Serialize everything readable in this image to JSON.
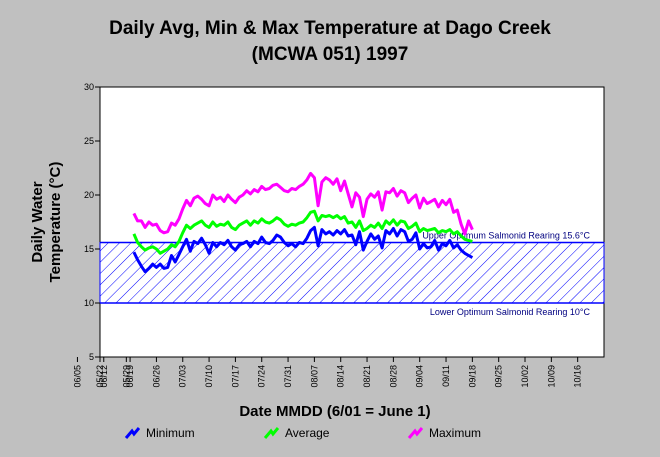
{
  "chart_data": {
    "type": "line",
    "title": "Daily Avg, Min & Max Temperature at Dago Creek",
    "subtitle": "(MCWA 051) 1997",
    "xlabel": "Date MMDD (6/01 = June 1)",
    "ylabel_line1": "Daily Water",
    "ylabel_line2": "Temperature (°C)",
    "ylim": [
      5,
      30
    ],
    "yticks": [
      5,
      10,
      15,
      20,
      25,
      30
    ],
    "x_ticks": [
      "05/22",
      "05/29",
      "06/05",
      "06/12",
      "06/19",
      "06/26",
      "07/03",
      "07/10",
      "07/17",
      "07/24",
      "07/31",
      "08/07",
      "08/14",
      "08/21",
      "08/28",
      "09/04",
      "09/11",
      "09/18",
      "09/25",
      "10/02",
      "10/09",
      "10/16"
    ],
    "x_start": "05/22",
    "x_end": "10/23",
    "grid": false,
    "legend_position": "bottom",
    "band": {
      "lower": 10,
      "upper": 15.6,
      "upper_label": "Upper Optimum Salmonid Rearing 15.6°C",
      "lower_label": "Lower Optimum Salmonid Rearing 10°C",
      "color": "#0000ff"
    },
    "x": [
      "06/20",
      "06/21",
      "06/22",
      "06/23",
      "06/24",
      "06/25",
      "06/26",
      "06/27",
      "06/28",
      "06/29",
      "06/30",
      "07/01",
      "07/02",
      "07/03",
      "07/04",
      "07/05",
      "07/06",
      "07/07",
      "07/08",
      "07/09",
      "07/10",
      "07/11",
      "07/12",
      "07/13",
      "07/14",
      "07/15",
      "07/16",
      "07/17",
      "07/18",
      "07/19",
      "07/20",
      "07/21",
      "07/22",
      "07/23",
      "07/24",
      "07/25",
      "07/26",
      "07/27",
      "07/28",
      "07/29",
      "07/30",
      "07/31",
      "08/01",
      "08/02",
      "08/03",
      "08/04",
      "08/05",
      "08/06",
      "08/07",
      "08/08",
      "08/09",
      "08/10",
      "08/11",
      "08/12",
      "08/13",
      "08/14",
      "08/15",
      "08/16",
      "08/17",
      "08/18",
      "08/19",
      "08/20",
      "08/21",
      "08/22",
      "08/23",
      "08/24",
      "08/25",
      "08/26",
      "08/27",
      "08/28",
      "08/29",
      "08/30",
      "08/31",
      "09/01",
      "09/02",
      "09/03",
      "09/04",
      "09/05",
      "09/06",
      "09/07",
      "09/08",
      "09/09",
      "09/10",
      "09/11",
      "09/12",
      "09/13",
      "09/14",
      "09/15",
      "09/16",
      "09/17",
      "09/18"
    ],
    "series": [
      {
        "name": "Minimum",
        "color": "#0000ff",
        "values": [
          14.7,
          14.0,
          13.4,
          12.9,
          13.2,
          13.6,
          13.3,
          13.6,
          13.2,
          13.3,
          14.4,
          13.8,
          14.5,
          15.2,
          15.9,
          14.8,
          15.7,
          15.5,
          16.0,
          15.4,
          14.6,
          15.6,
          15.2,
          15.6,
          15.4,
          15.8,
          15.2,
          14.9,
          15.4,
          15.5,
          15.7,
          15.2,
          15.7,
          15.5,
          16.1,
          15.6,
          15.5,
          15.8,
          16.3,
          16.1,
          15.6,
          15.3,
          15.5,
          15.2,
          15.6,
          15.5,
          16.0,
          16.7,
          17.0,
          15.3,
          16.8,
          16.4,
          16.6,
          16.3,
          16.7,
          16.4,
          16.8,
          16.2,
          16.3,
          15.4,
          16.6,
          14.9,
          15.7,
          16.4,
          15.9,
          16.2,
          15.1,
          16.7,
          16.4,
          16.9,
          16.2,
          16.8,
          16.6,
          15.7,
          15.9,
          16.5,
          15.0,
          15.5,
          15.1,
          15.2,
          15.8,
          14.9,
          15.5,
          15.3,
          15.8,
          15.1,
          15.4,
          14.9,
          14.6,
          14.4,
          14.2
        ]
      },
      {
        "name": "Average",
        "color": "#00ff00",
        "values": [
          16.4,
          15.6,
          15.2,
          14.9,
          15.1,
          15.2,
          15.0,
          14.6,
          14.8,
          15.0,
          15.4,
          15.2,
          15.7,
          16.5,
          17.2,
          16.9,
          17.2,
          17.4,
          17.6,
          17.2,
          17.0,
          17.5,
          17.1,
          17.3,
          17.2,
          17.5,
          17.0,
          16.8,
          17.2,
          17.4,
          17.6,
          17.2,
          17.6,
          17.4,
          17.8,
          17.5,
          17.4,
          17.6,
          17.9,
          17.7,
          17.3,
          17.1,
          17.3,
          17.2,
          17.4,
          17.5,
          17.9,
          18.4,
          18.5,
          17.6,
          18.1,
          18.0,
          18.1,
          17.9,
          18.1,
          17.8,
          18.0,
          17.4,
          17.5,
          17.0,
          17.6,
          16.7,
          16.9,
          17.2,
          17.0,
          17.4,
          16.9,
          17.6,
          17.3,
          17.7,
          17.2,
          17.6,
          17.5,
          16.9,
          17.1,
          17.4,
          16.6,
          16.9,
          16.7,
          16.8,
          16.9,
          16.5,
          16.7,
          16.6,
          16.8,
          16.4,
          16.6,
          16.2,
          15.9,
          15.8,
          15.7
        ]
      },
      {
        "name": "Maximum",
        "color": "#ff00ff",
        "values": [
          18.3,
          17.6,
          17.6,
          17.0,
          17.5,
          17.2,
          17.3,
          16.7,
          16.5,
          16.6,
          17.4,
          17.2,
          17.8,
          18.7,
          19.5,
          19.0,
          19.7,
          19.9,
          19.6,
          19.2,
          19.0,
          20.0,
          19.6,
          19.8,
          19.4,
          20.0,
          19.6,
          19.3,
          19.8,
          20.0,
          20.4,
          20.1,
          20.5,
          20.3,
          20.8,
          20.5,
          20.6,
          20.9,
          21.0,
          20.7,
          20.4,
          20.3,
          20.6,
          20.5,
          20.8,
          21.0,
          21.4,
          22.0,
          21.6,
          19.0,
          21.2,
          21.6,
          21.4,
          21.0,
          21.5,
          20.4,
          21.3,
          20.1,
          18.9,
          20.2,
          19.8,
          18.0,
          19.6,
          20.1,
          19.8,
          20.3,
          18.6,
          20.3,
          20.2,
          20.6,
          19.9,
          20.4,
          20.2,
          19.3,
          19.7,
          20.0,
          18.8,
          19.7,
          19.2,
          19.4,
          19.6,
          18.9,
          19.5,
          19.1,
          19.6,
          18.4,
          18.6,
          17.3,
          16.4,
          17.6,
          16.8
        ]
      }
    ]
  }
}
